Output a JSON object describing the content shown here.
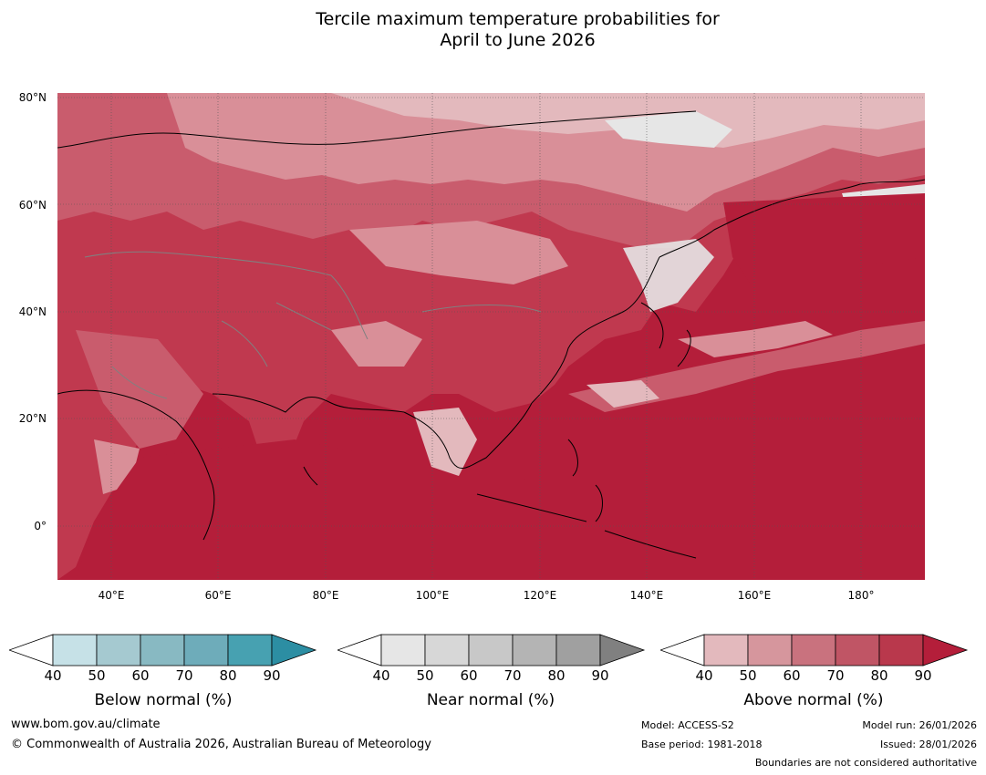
{
  "title_line1": "Tercile maximum temperature probabilities for",
  "title_line2": "April to June 2026",
  "map": {
    "lat_labels": [
      "80°N",
      "60°N",
      "40°N",
      "20°N",
      "0°"
    ],
    "lon_labels": [
      "40°E",
      "60°E",
      "80°E",
      "100°E",
      "120°E",
      "140°E",
      "160°E",
      "180°"
    ],
    "colors": {
      "ocean_high": "#b41e3a",
      "land_high": "#c0394f",
      "medium": "#c95c6d",
      "light": "#d98f98",
      "pale": "#e3b9bd",
      "neutral": "#e6e6e6",
      "coast": "#000000",
      "border": "#808080"
    }
  },
  "colorbars": [
    {
      "name": "below",
      "label": "Below normal (%)",
      "ticks": [
        "40",
        "50",
        "60",
        "70",
        "80",
        "90"
      ],
      "colors": [
        "#ffffff",
        "#c6e1e7",
        "#a5c9d0",
        "#88b9c2",
        "#6eacba",
        "#47a1b1",
        "#2c8ea3"
      ]
    },
    {
      "name": "near",
      "label": "Near normal (%)",
      "ticks": [
        "40",
        "50",
        "60",
        "70",
        "80",
        "90"
      ],
      "colors": [
        "#ffffff",
        "#e6e6e6",
        "#d7d7d7",
        "#c8c8c8",
        "#b4b4b4",
        "#a0a0a0",
        "#808080"
      ]
    },
    {
      "name": "above",
      "label": "Above normal (%)",
      "ticks": [
        "40",
        "50",
        "60",
        "70",
        "80",
        "90"
      ],
      "colors": [
        "#ffffff",
        "#e3b9bd",
        "#d6969d",
        "#c9727e",
        "#c05565",
        "#b9384c",
        "#b41e3a"
      ]
    }
  ],
  "footer": {
    "url": "www.bom.gov.au/climate",
    "copyright": "© Commonwealth of Australia 2026, Australian Bureau of Meteorology",
    "model": "Model: ACCESS-S2",
    "base_period": "Base period: 1981-2018",
    "model_run": "Model run: 26/01/2026",
    "issued": "Issued: 28/01/2026",
    "disclaimer": "Boundaries are not considered authoritative"
  }
}
